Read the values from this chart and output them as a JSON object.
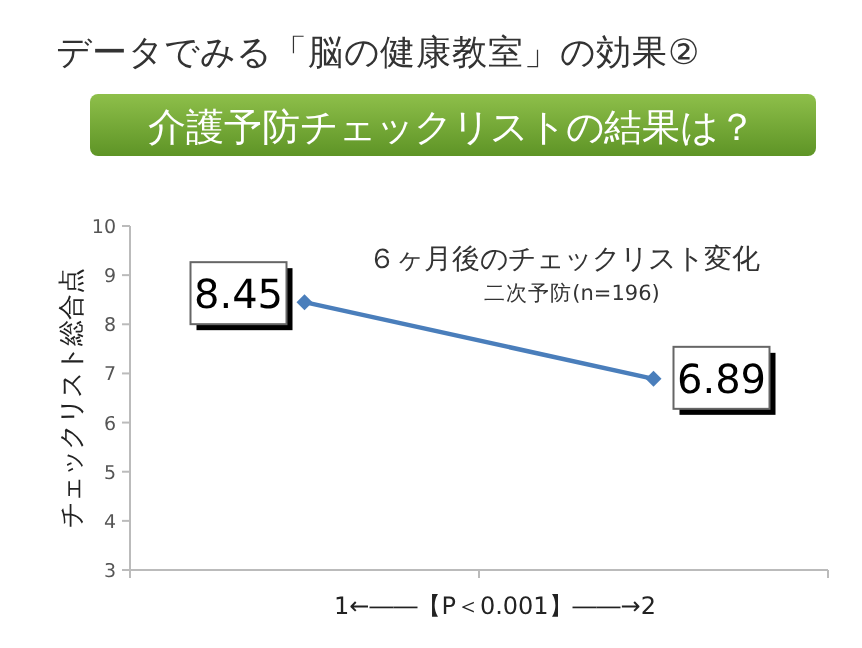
{
  "chart_data": {
    "type": "line",
    "title": "データでみる「脳の健康教室」の効果②",
    "subtitle": "介護予防チェックリストの結果は？",
    "annotations": [
      "６ヶ月後のチェックリスト変化",
      "二次予防(n=196)"
    ],
    "xlabel": "1←――【P＜0.001】――→2",
    "ylabel": "チェックリスト総合点",
    "categories": [
      null,
      null
    ],
    "series": [
      {
        "color": "#4a7ebb",
        "values": [
          8.45,
          6.89
        ]
      }
    ],
    "ylim": [
      3,
      10
    ],
    "yticks": [
      3,
      4,
      5,
      6,
      7,
      8,
      9,
      10
    ],
    "data_labels": true,
    "marker": "diamond",
    "grid": false
  }
}
